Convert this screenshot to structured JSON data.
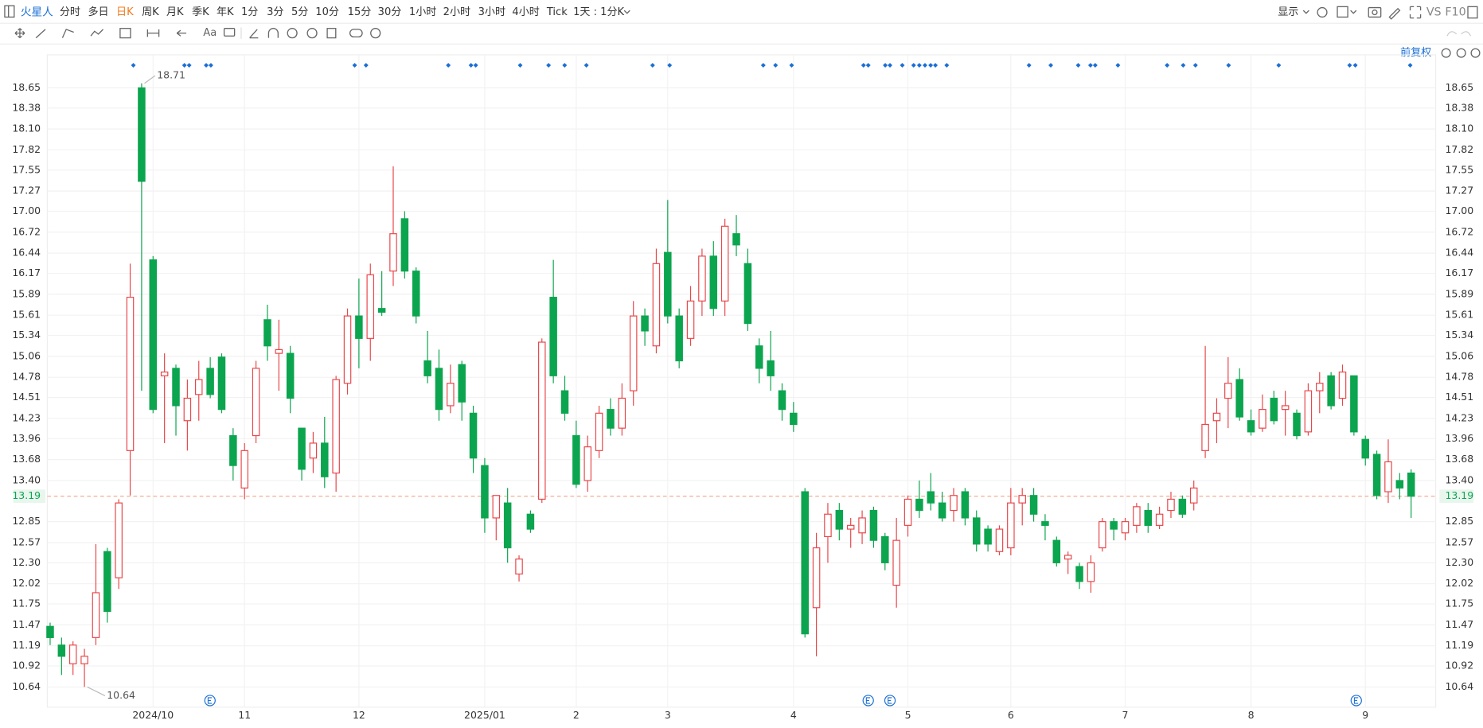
{
  "toolbar": {
    "logo": "火星人",
    "periods": [
      "分时",
      "多日",
      "日K",
      "周K",
      "月K",
      "季K",
      "年K",
      "1分",
      "3分",
      "5分",
      "10分",
      "15分",
      "30分",
      "1小时",
      "2小时",
      "3小时",
      "4小时",
      "Tick"
    ],
    "interval": "1天 : 1分K",
    "display": "显示",
    "vs": "VS",
    "f10": "F10",
    "text_tool": "Aa",
    "adjust": "前复权"
  },
  "chart_data": {
    "type": "candlestick",
    "categories": [
      null,
      null,
      null,
      null,
      null,
      null,
      null,
      null,
      null,
      "2024/10",
      null,
      null,
      null,
      null,
      null,
      null,
      null,
      "11",
      null,
      null,
      null,
      null,
      null,
      null,
      null,
      null,
      null,
      "12",
      null,
      null,
      null,
      null,
      null,
      null,
      null,
      null,
      null,
      null,
      "2025/01",
      null,
      null,
      null,
      null,
      null,
      null,
      null,
      "2",
      null,
      null,
      null,
      null,
      null,
      null,
      null,
      "3",
      null,
      null,
      null,
      null,
      null,
      null,
      null,
      null,
      null,
      null,
      "4",
      null,
      null,
      null,
      null,
      null,
      null,
      null,
      null,
      null,
      "5",
      null,
      null,
      null,
      null,
      null,
      null,
      null,
      null,
      "6",
      null,
      null,
      null,
      null,
      null,
      null,
      null,
      null,
      null,
      "7",
      null,
      null,
      null,
      null,
      null,
      null,
      null,
      null,
      null,
      null,
      "8",
      null,
      null,
      null,
      null,
      null,
      null,
      null,
      null,
      null,
      "9",
      null,
      null,
      null,
      null
    ],
    "open": [
      11.45,
      11.2,
      10.95,
      10.95,
      11.3,
      12.45,
      12.1,
      13.8,
      18.65,
      16.35,
      14.8,
      14.9,
      14.2,
      14.55,
      14.9,
      15.05,
      14.0,
      13.3,
      14.0,
      15.55,
      15.1,
      15.1,
      14.1,
      13.7,
      13.9,
      13.5,
      14.7,
      15.6,
      15.3,
      15.7,
      16.2,
      16.9,
      16.2,
      15.0,
      14.9,
      14.4,
      14.95,
      14.3,
      13.6,
      12.9,
      13.1,
      12.15,
      12.95,
      13.15,
      15.85,
      14.6,
      14.0,
      13.4,
      13.8,
      14.35,
      14.1,
      14.6,
      15.6,
      15.2,
      16.45,
      15.6,
      15.3,
      15.8,
      16.4,
      15.8,
      16.7,
      16.3,
      15.2,
      15.0,
      14.6,
      14.3,
      13.25,
      11.7,
      12.65,
      13.0,
      12.75,
      12.7,
      13.0,
      12.65,
      12.0,
      12.8,
      13.15,
      13.25,
      13.1,
      13.0,
      13.25,
      12.9,
      12.75,
      12.45,
      12.5,
      13.1,
      13.2,
      12.85,
      12.6,
      12.35,
      12.25,
      12.05,
      12.5,
      12.85,
      12.7,
      12.8,
      13.0,
      12.8,
      13.0,
      13.15,
      13.1,
      13.8,
      14.2,
      14.5,
      14.75,
      14.2,
      14.1,
      14.5,
      14.35,
      14.3,
      14.05,
      14.6,
      14.8,
      14.5,
      14.8,
      13.95,
      13.75,
      13.25,
      13.4,
      13.5
    ],
    "high": [
      11.5,
      11.3,
      11.25,
      11.15,
      12.55,
      12.5,
      13.15,
      16.3,
      18.71,
      16.4,
      15.1,
      14.95,
      14.75,
      15.0,
      15.05,
      15.1,
      14.1,
      13.9,
      15.0,
      15.75,
      15.55,
      15.2,
      14.1,
      14.05,
      14.25,
      14.8,
      15.7,
      16.1,
      16.3,
      16.2,
      17.6,
      17.0,
      16.25,
      15.4,
      15.15,
      14.95,
      15.0,
      14.4,
      13.7,
      13.2,
      13.3,
      12.4,
      13.0,
      15.3,
      16.35,
      14.8,
      14.2,
      14.0,
      14.4,
      14.5,
      14.7,
      15.8,
      15.7,
      16.5,
      17.15,
      15.7,
      16.0,
      16.5,
      16.6,
      16.9,
      16.95,
      16.5,
      15.3,
      15.4,
      14.7,
      14.45,
      13.3,
      12.7,
      13.1,
      13.1,
      12.9,
      13.0,
      13.05,
      12.7,
      12.9,
      13.2,
      13.4,
      13.5,
      13.25,
      13.3,
      13.3,
      13.0,
      12.8,
      12.8,
      13.3,
      13.3,
      13.3,
      12.95,
      12.65,
      12.45,
      12.3,
      12.4,
      12.9,
      12.9,
      12.9,
      13.1,
      13.1,
      13.05,
      13.25,
      13.2,
      13.4,
      15.2,
      14.5,
      15.05,
      14.9,
      14.35,
      14.55,
      14.6,
      14.6,
      14.35,
      14.7,
      14.85,
      14.85,
      14.95,
      14.8,
      14.0,
      13.8,
      13.95,
      13.5,
      13.55
    ],
    "low": [
      11.2,
      10.8,
      10.8,
      10.64,
      11.2,
      11.5,
      11.95,
      13.2,
      14.6,
      14.3,
      13.9,
      14.0,
      13.8,
      14.2,
      14.5,
      14.3,
      13.4,
      13.15,
      13.9,
      15.0,
      14.6,
      14.3,
      13.4,
      13.5,
      13.3,
      13.25,
      14.55,
      14.9,
      15.0,
      15.6,
      16.0,
      16.1,
      15.5,
      14.7,
      14.2,
      14.3,
      14.2,
      13.5,
      12.7,
      12.6,
      12.3,
      12.05,
      12.7,
      13.1,
      14.7,
      14.2,
      13.3,
      13.25,
      13.7,
      14.0,
      14.0,
      14.4,
      15.2,
      15.1,
      15.5,
      14.9,
      15.2,
      15.6,
      15.6,
      15.6,
      16.4,
      15.4,
      14.7,
      14.6,
      14.2,
      14.05,
      11.3,
      11.05,
      12.3,
      12.6,
      12.5,
      12.55,
      12.5,
      12.2,
      11.7,
      12.65,
      12.9,
      13.0,
      12.85,
      12.85,
      12.8,
      12.45,
      12.45,
      12.4,
      12.4,
      12.8,
      12.85,
      12.6,
      12.25,
      12.15,
      11.95,
      11.9,
      12.45,
      12.6,
      12.6,
      12.7,
      12.7,
      12.75,
      12.9,
      12.9,
      13.0,
      13.7,
      13.9,
      14.1,
      14.2,
      14.0,
      14.05,
      14.15,
      14.0,
      13.95,
      14.0,
      14.3,
      14.35,
      14.4,
      14.0,
      13.6,
      13.15,
      13.1,
      13.15,
      12.9
    ],
    "close": [
      11.3,
      11.05,
      11.2,
      11.05,
      11.9,
      11.65,
      13.1,
      15.85,
      17.4,
      14.35,
      14.85,
      14.4,
      14.5,
      14.75,
      14.55,
      14.35,
      13.6,
      13.8,
      14.9,
      15.2,
      15.15,
      14.5,
      13.55,
      13.9,
      13.45,
      14.75,
      15.6,
      15.3,
      16.15,
      15.65,
      16.7,
      16.2,
      15.6,
      14.8,
      14.35,
      14.7,
      14.45,
      13.7,
      12.9,
      13.2,
      12.5,
      12.35,
      12.75,
      15.25,
      14.8,
      14.3,
      13.35,
      13.85,
      14.3,
      14.1,
      14.5,
      15.6,
      15.4,
      16.3,
      15.6,
      15.0,
      15.8,
      16.4,
      15.7,
      16.8,
      16.55,
      15.5,
      14.9,
      14.8,
      14.35,
      14.15,
      11.35,
      12.5,
      12.95,
      12.75,
      12.8,
      12.9,
      12.6,
      12.3,
      12.6,
      13.15,
      13.0,
      13.1,
      12.9,
      13.2,
      12.9,
      12.55,
      12.55,
      12.75,
      13.1,
      13.2,
      12.95,
      12.8,
      12.3,
      12.4,
      12.05,
      12.3,
      12.85,
      12.75,
      12.85,
      13.05,
      12.8,
      12.95,
      13.15,
      12.95,
      13.3,
      14.15,
      14.3,
      14.7,
      14.25,
      14.05,
      14.35,
      14.2,
      14.4,
      14.0,
      14.6,
      14.7,
      14.4,
      14.85,
      14.05,
      13.7,
      13.2,
      13.65,
      13.3,
      13.19
    ],
    "up_color": "#e8474a",
    "down_color": "#0ca54f",
    "ylim": [
      10.37,
      19.04
    ],
    "yticks": [
      18.65,
      18.38,
      {
        "value": 18.1,
        "label": "18.10"
      },
      17.82,
      17.55,
      17.27,
      {
        "value": 17,
        "label": "17.00"
      },
      16.72,
      16.44,
      16.17,
      15.89,
      15.61,
      15.34,
      15.06,
      14.78,
      14.51,
      14.23,
      13.96,
      13.68,
      {
        "value": 13.4,
        "label": "13.40"
      },
      12.85,
      12.57,
      {
        "value": 12.3,
        "label": "12.30"
      },
      12.02,
      11.75,
      11.47,
      11.19,
      10.92,
      10.64
    ],
    "grid": true,
    "max_label": 18.71,
    "min_label": 10.64,
    "last_price": 13.19
  }
}
